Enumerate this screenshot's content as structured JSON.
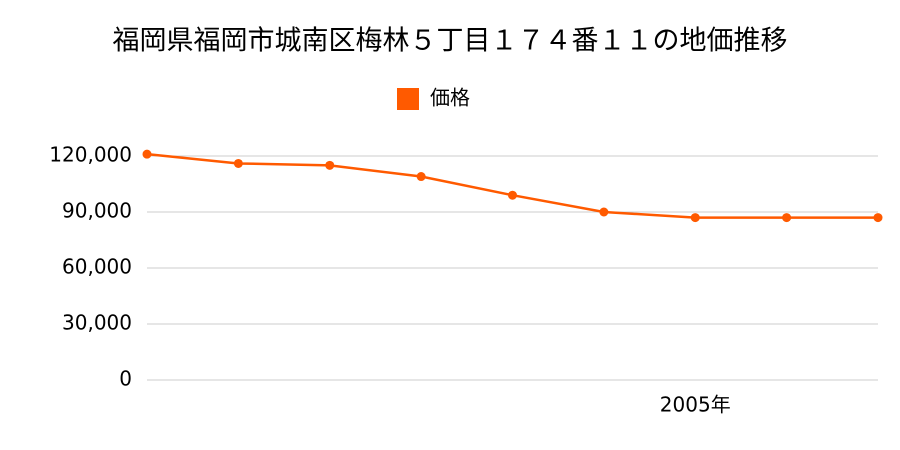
{
  "chart_data": {
    "type": "line",
    "title": "福岡県福岡市城南区梅林５丁目１７４番１１の地価推移",
    "categories": [
      null,
      null,
      null,
      null,
      null,
      null,
      "2005年",
      null,
      null
    ],
    "series": [
      {
        "name": "価格",
        "color": "#ff5a00",
        "values": [
          121000,
          116000,
          115000,
          109000,
          99000,
          90000,
          87000,
          87000,
          87000
        ]
      }
    ],
    "ylim": [
      0,
      120000
    ],
    "yticks": [
      0,
      {
        "value": 30000,
        "label": "30,000"
      },
      {
        "value": 60000,
        "label": "60,000"
      },
      {
        "value": 90000,
        "label": "90,000"
      },
      {
        "value": 120000,
        "label": "120,000"
      }
    ],
    "grid": true
  }
}
